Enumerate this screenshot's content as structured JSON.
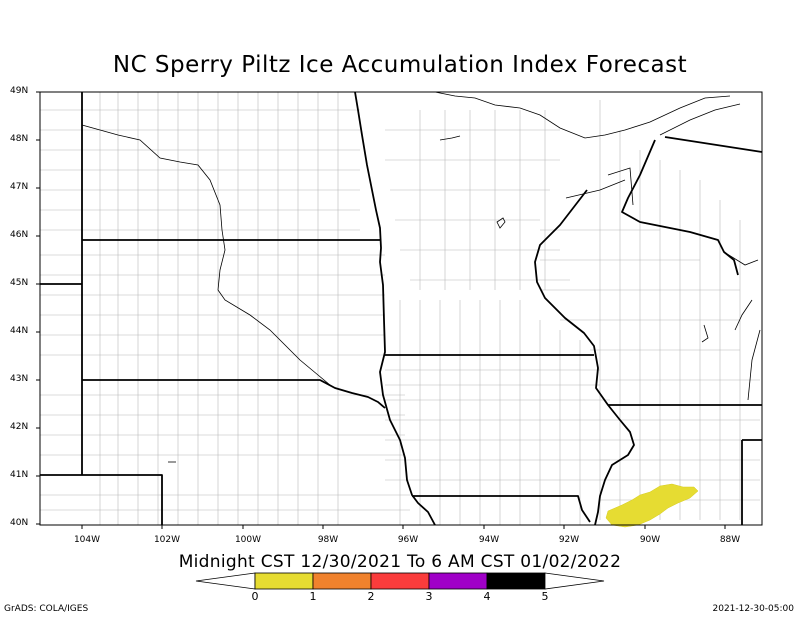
{
  "title": "NC Sperry Piltz Ice Accumulation Index Forecast",
  "subtitle": "Midnight CST 12/30/2021 To 6 AM CST 01/02/2022",
  "lat_labels": [
    "49N",
    "48N",
    "47N",
    "46N",
    "45N",
    "44N",
    "43N",
    "42N",
    "41N",
    "40N"
  ],
  "lon_labels": [
    "104W",
    "102W",
    "100W",
    "98W",
    "96W",
    "94W",
    "92W",
    "90W",
    "88W"
  ],
  "colorbar": {
    "ticks": [
      "0",
      "1",
      "2",
      "3",
      "4",
      "5"
    ],
    "colors": [
      "#e6dc32",
      "#f0822d",
      "#fa3c3c",
      "#a000c8",
      "#000000"
    ]
  },
  "ice_color": "#e6dc32",
  "footer_left": "GrADS: COLA/IGES",
  "footer_right": "2021-12-30-05:00"
}
